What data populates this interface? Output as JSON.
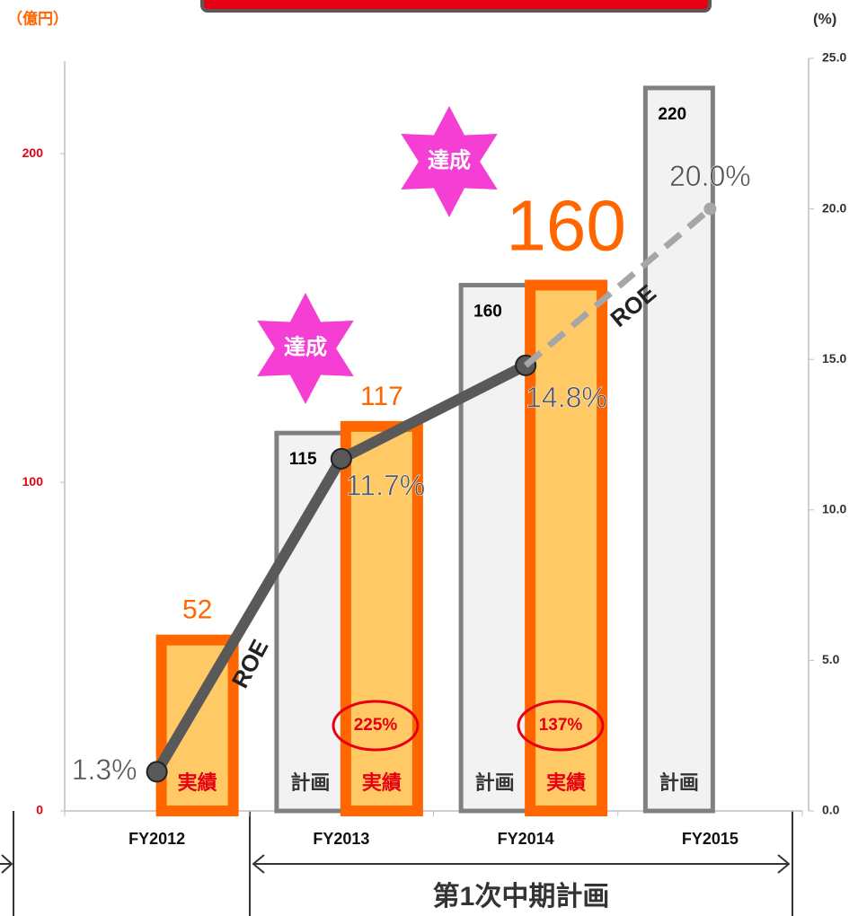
{
  "chart_data": {
    "type": "bar",
    "y_label": "（億円）",
    "y2_label": "(%)",
    "categories": [
      "FY2012",
      "FY2013",
      "FY2014",
      "FY2015"
    ],
    "series": [
      {
        "name": "計画",
        "color": "#808080",
        "values": [
          null,
          115,
          160,
          220
        ]
      },
      {
        "name": "実績",
        "color": "#ff6600",
        "values": [
          52,
          117,
          160,
          null
        ]
      },
      {
        "name": "ROE",
        "color": "#595959",
        "axis": "y2",
        "values": [
          1.3,
          11.7,
          14.8,
          null
        ],
        "value_labels": [
          "1.3%",
          "11.7%",
          "14.8%",
          null
        ]
      },
      {
        "name": "ROE",
        "color": "#a6a6a6",
        "axis": "y2",
        "values": [
          null,
          null,
          14.8,
          20.0
        ],
        "value_labels": [
          null,
          null,
          null,
          "20.0%"
        ]
      }
    ],
    "ylim": [
      0,
      229
    ],
    "yticks": [
      0,
      100,
      200
    ],
    "y2lim": [
      0,
      25
    ],
    "y2ticks": [
      {
        "value": 0,
        "label": "0.0"
      },
      {
        "value": 5,
        "label": "5.0"
      },
      {
        "value": 10,
        "label": "10.0"
      },
      {
        "value": 15,
        "label": "15.0"
      },
      {
        "value": 20,
        "label": "20.0"
      },
      {
        "value": 25,
        "label": "25.0"
      }
    ],
    "annotations": [
      "達成",
      "達成"
    ],
    "achievement_rates": [
      "225%",
      "137%"
    ],
    "period_label": "第1次中期計画"
  }
}
